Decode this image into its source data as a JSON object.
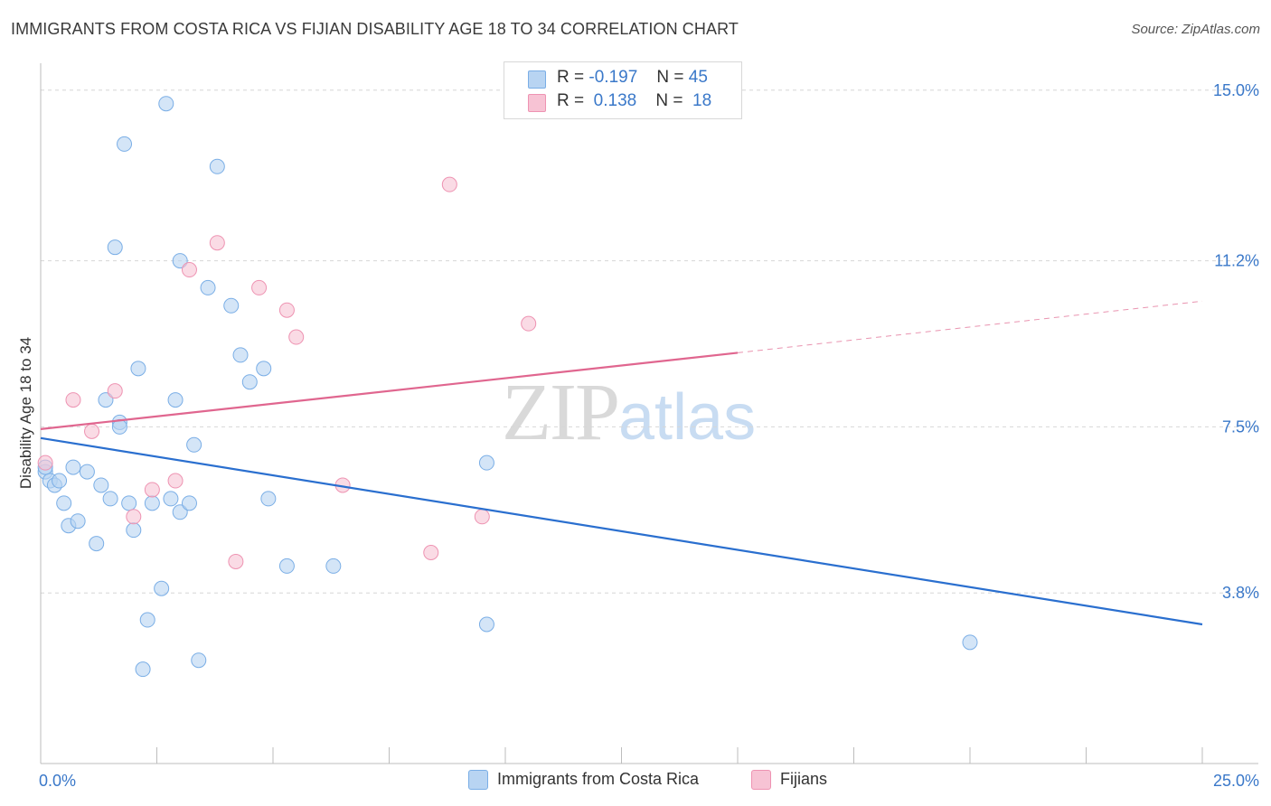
{
  "title": "IMMIGRANTS FROM COSTA RICA VS FIJIAN DISABILITY AGE 18 TO 34 CORRELATION CHART",
  "source": "Source: ZipAtlas.com",
  "watermark": {
    "zip": "ZIP",
    "atlas": "atlas"
  },
  "colors": {
    "blue_fill": "#b8d4f2",
    "blue_stroke": "#7aaee6",
    "blue_line": "#2a6fcf",
    "pink_fill": "#f7c3d4",
    "pink_stroke": "#ee93b2",
    "pink_line": "#e0668f",
    "tick_text": "#3a78c9"
  },
  "legend": {
    "rows": [
      {
        "r_label": "R =",
        "r_value": "-0.197",
        "n_label": "N =",
        "n_value": "45"
      },
      {
        "r_label": "R =",
        "r_value": "0.138",
        "n_label": "N =",
        "n_value": "18"
      }
    ]
  },
  "bottom_legend": [
    "Immigrants from Costa Rica",
    "Fijians"
  ],
  "chart_data": {
    "type": "scatter",
    "title": "IMMIGRANTS FROM COSTA RICA VS FIJIAN DISABILITY AGE 18 TO 34 CORRELATION CHART",
    "xlabel": "",
    "ylabel": "Disability Age 18 to 34",
    "xlim": [
      0,
      25
    ],
    "ylim": [
      0,
      15.6
    ],
    "x_tick_labels": [
      "0.0%",
      "25.0%"
    ],
    "y_ticks": [
      3.8,
      7.5,
      11.2,
      15.0
    ],
    "y_tick_labels": [
      "3.8%",
      "7.5%",
      "11.2%",
      "15.0%"
    ],
    "grid": true,
    "legend_placement": "top-center",
    "series": [
      {
        "name": "Immigrants from Costa Rica",
        "points": [
          [
            0.1,
            6.5
          ],
          [
            0.2,
            6.3
          ],
          [
            0.3,
            6.2
          ],
          [
            0.4,
            6.3
          ],
          [
            0.5,
            5.8
          ],
          [
            0.6,
            5.3
          ],
          [
            0.7,
            6.6
          ],
          [
            0.8,
            5.4
          ],
          [
            1.0,
            6.5
          ],
          [
            1.2,
            4.9
          ],
          [
            1.3,
            6.2
          ],
          [
            1.4,
            8.1
          ],
          [
            1.5,
            5.9
          ],
          [
            1.6,
            11.5
          ],
          [
            1.7,
            7.6
          ],
          [
            1.7,
            7.5
          ],
          [
            1.8,
            13.8
          ],
          [
            1.9,
            5.8
          ],
          [
            2.0,
            5.2
          ],
          [
            2.1,
            8.8
          ],
          [
            2.2,
            2.1
          ],
          [
            2.3,
            3.2
          ],
          [
            2.4,
            5.8
          ],
          [
            2.6,
            3.9
          ],
          [
            2.7,
            14.7
          ],
          [
            2.8,
            5.9
          ],
          [
            2.9,
            8.1
          ],
          [
            3.0,
            5.6
          ],
          [
            3.0,
            11.2
          ],
          [
            3.2,
            5.8
          ],
          [
            3.3,
            7.1
          ],
          [
            3.4,
            2.3
          ],
          [
            3.6,
            10.6
          ],
          [
            3.8,
            13.3
          ],
          [
            4.1,
            10.2
          ],
          [
            4.3,
            9.1
          ],
          [
            4.5,
            8.5
          ],
          [
            4.8,
            8.8
          ],
          [
            4.9,
            5.9
          ],
          [
            5.3,
            4.4
          ],
          [
            6.3,
            4.4
          ],
          [
            9.6,
            6.7
          ],
          [
            9.6,
            3.1
          ],
          [
            20.0,
            2.7
          ],
          [
            0.1,
            6.6
          ]
        ],
        "trend": {
          "x": [
            0,
            25
          ],
          "y": [
            7.25,
            3.1
          ]
        }
      },
      {
        "name": "Fijians",
        "points": [
          [
            0.1,
            6.7
          ],
          [
            0.7,
            8.1
          ],
          [
            1.1,
            7.4
          ],
          [
            1.6,
            8.3
          ],
          [
            2.0,
            5.5
          ],
          [
            2.4,
            6.1
          ],
          [
            2.9,
            6.3
          ],
          [
            3.2,
            11.0
          ],
          [
            3.8,
            11.6
          ],
          [
            4.2,
            4.5
          ],
          [
            4.7,
            10.6
          ],
          [
            5.3,
            10.1
          ],
          [
            5.5,
            9.5
          ],
          [
            6.5,
            6.2
          ],
          [
            8.4,
            4.7
          ],
          [
            8.8,
            12.9
          ],
          [
            9.5,
            5.5
          ],
          [
            10.5,
            9.8
          ]
        ],
        "trend": {
          "x": [
            0,
            15
          ],
          "y": [
            7.45,
            9.15
          ]
        },
        "trend_dashed": {
          "x": [
            15,
            25
          ],
          "y": [
            9.15,
            10.3
          ]
        }
      }
    ]
  }
}
